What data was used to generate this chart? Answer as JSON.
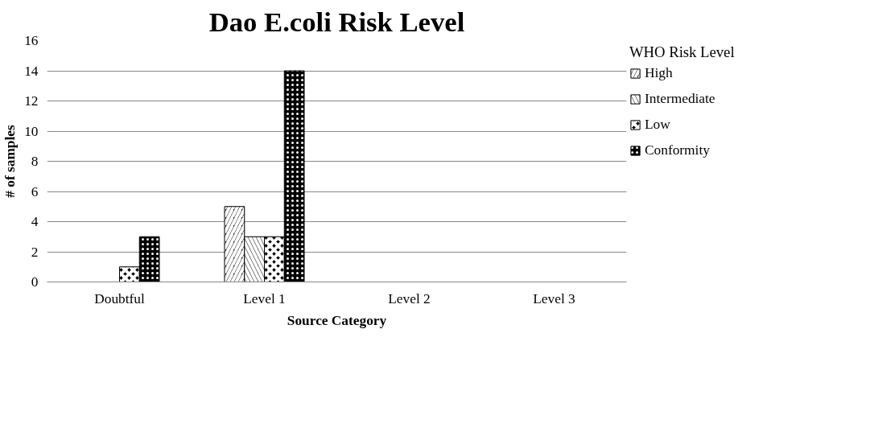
{
  "chart_data": {
    "type": "bar",
    "title": "Dao E.coli Risk Level",
    "xlabel": "Source Category",
    "ylabel": "# of samples",
    "legend_title": "WHO Risk Level",
    "categories": [
      "Doubtful",
      "Level 1",
      "Level 2",
      "Level 3"
    ],
    "series": [
      {
        "name": "High",
        "color": "#000000",
        "values": [
          0,
          5,
          0,
          0
        ]
      },
      {
        "name": "Intermediate",
        "color": "#000000",
        "values": [
          0,
          3,
          0,
          0
        ]
      },
      {
        "name": "Low",
        "color": "#000000",
        "values": [
          1,
          3,
          0,
          0
        ]
      },
      {
        "name": "Conformity",
        "color": "#000000",
        "values": [
          3,
          14,
          0,
          0
        ]
      }
    ],
    "ylim": [
      0,
      16
    ],
    "yticks": [
      0,
      2,
      4,
      6,
      8,
      10,
      12,
      14,
      16
    ],
    "grid": "y",
    "legend": "right"
  }
}
